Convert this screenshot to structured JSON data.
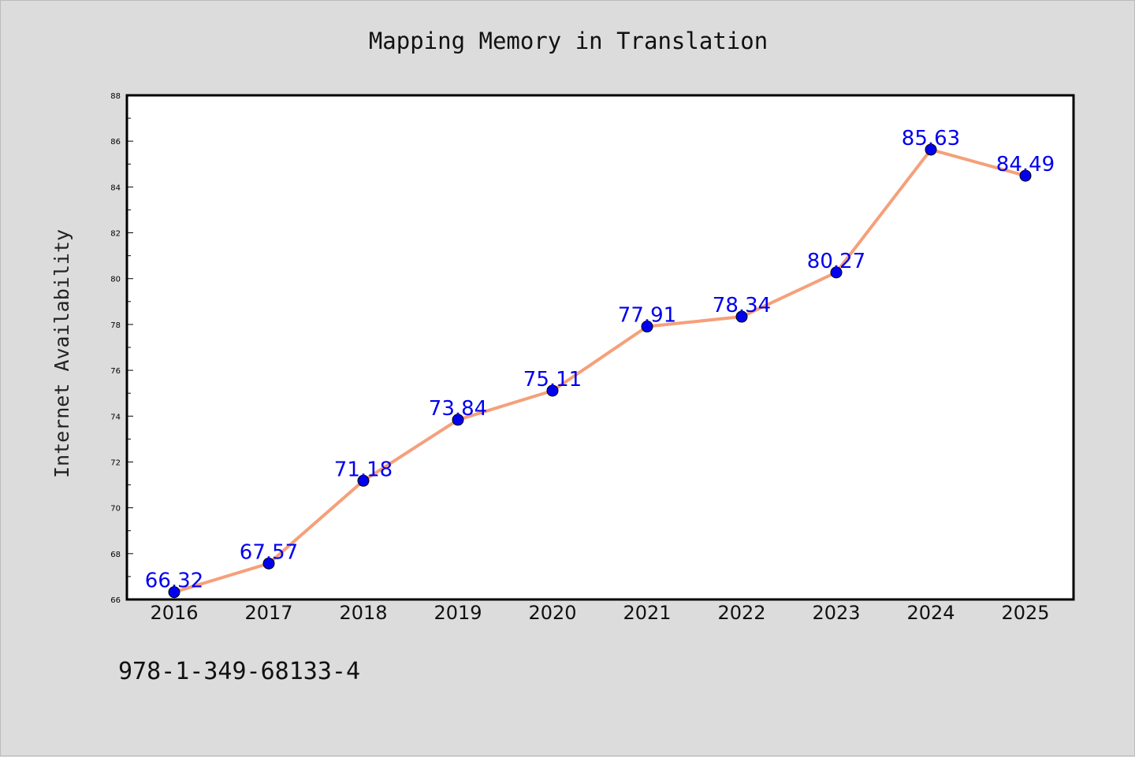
{
  "chart_data": {
    "type": "line",
    "title": "Mapping Memory in Translation",
    "ylabel": "Internet Availability",
    "xlabel": "",
    "categories": [
      "2016",
      "2017",
      "2018",
      "2019",
      "2020",
      "2021",
      "2022",
      "2023",
      "2024",
      "2025"
    ],
    "series": [
      {
        "values": [
          66.32,
          67.57,
          71.18,
          73.84,
          75.11,
          77.91,
          78.34,
          80.27,
          85.63,
          84.49
        ]
      }
    ],
    "data_labels": [
      "66.32",
      "67.57",
      "71.18",
      "73.84",
      "75.11",
      "77.91",
      "78.34",
      "80.27",
      "85.63",
      "84.49"
    ],
    "ylim": [
      66,
      88
    ],
    "yticks": [
      "66",
      "68",
      "70",
      "72",
      "74",
      "76",
      "78",
      "80",
      "82",
      "84",
      "86",
      "88"
    ],
    "grid": false,
    "legend": "none",
    "colors": {
      "line": "#f5a07a",
      "marker": "#0000ee",
      "label": "#0000ee",
      "background": "#dcdcdc",
      "plot": "#ffffff"
    }
  },
  "footer": {
    "isbn": "978-1-349-68133-4"
  }
}
